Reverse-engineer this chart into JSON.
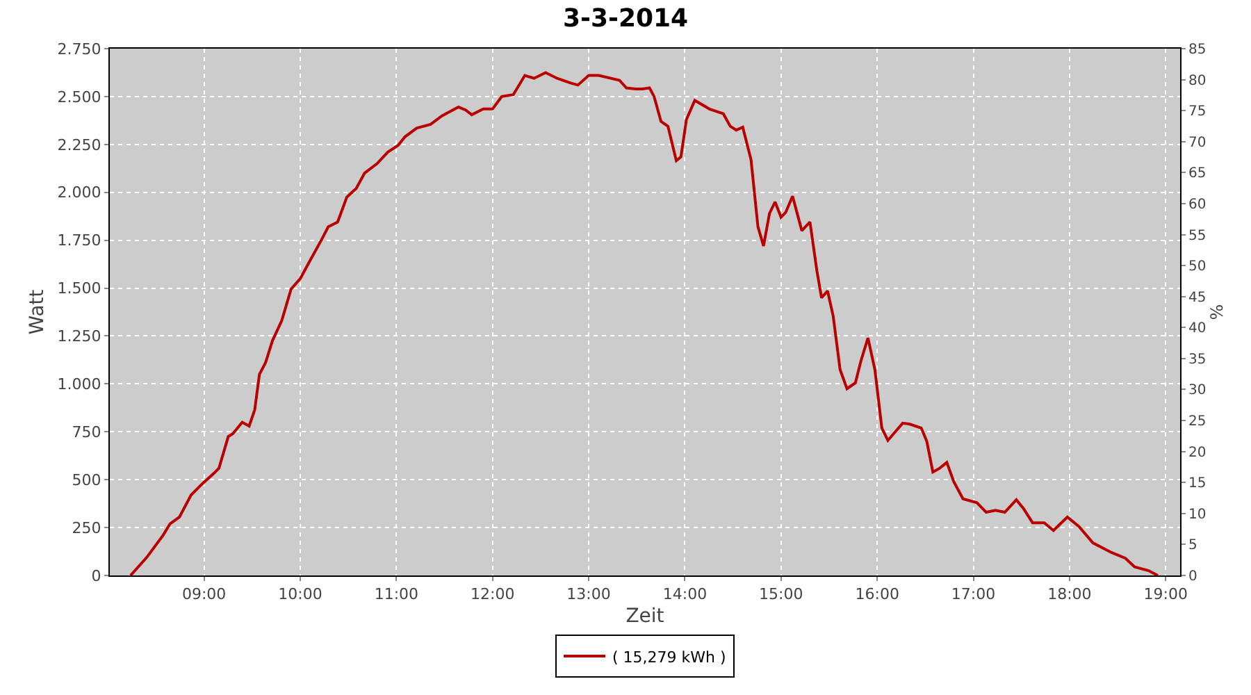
{
  "chart_data": {
    "type": "line",
    "title": "3-3-2014",
    "xlabel": "Zeit",
    "ylabel": "Watt",
    "y2label": "%",
    "x": [
      8.236,
      8.405,
      8.574,
      8.647,
      8.744,
      8.865,
      8.985,
      9.106,
      9.155,
      9.252,
      9.3,
      9.397,
      9.469,
      9.527,
      9.576,
      9.639,
      9.711,
      9.808,
      9.905,
      10.001,
      10.098,
      10.219,
      10.292,
      10.389,
      10.485,
      10.582,
      10.669,
      10.8,
      10.911,
      11.017,
      11.09,
      11.211,
      11.356,
      11.477,
      11.646,
      11.719,
      11.784,
      11.904,
      12.0,
      12.096,
      12.216,
      12.336,
      12.432,
      12.552,
      12.672,
      12.816,
      12.888,
      13.0,
      13.104,
      13.32,
      13.392,
      13.488,
      13.56,
      13.632,
      13.68,
      13.752,
      13.824,
      13.911,
      13.959,
      14.016,
      14.103,
      14.256,
      14.4,
      14.472,
      14.535,
      14.602,
      14.688,
      14.76,
      14.818,
      14.88,
      14.938,
      15.0,
      15.048,
      15.12,
      15.216,
      15.301,
      15.373,
      15.421,
      15.484,
      15.542,
      15.614,
      15.686,
      15.773,
      15.831,
      15.904,
      15.976,
      16.048,
      16.111,
      16.265,
      16.338,
      16.458,
      16.516,
      16.579,
      16.651,
      16.724,
      16.796,
      16.892,
      17.037,
      17.134,
      17.23,
      17.327,
      17.447,
      17.52,
      17.616,
      17.737,
      17.833,
      17.978,
      18.099,
      18.243,
      18.436,
      18.581,
      18.677,
      18.822,
      18.918
    ],
    "series": [
      {
        "name": "( 15,279 kWh )",
        "color": "#bb0000",
        "values": [
          0,
          95,
          210,
          270,
          305,
          420,
          480,
          535,
          560,
          725,
          740,
          800,
          780,
          865,
          1050,
          1110,
          1225,
          1330,
          1495,
          1550,
          1640,
          1750,
          1820,
          1845,
          1975,
          2020,
          2100,
          2150,
          2210,
          2245,
          2290,
          2335,
          2355,
          2400,
          2445,
          2430,
          2405,
          2435,
          2435,
          2500,
          2510,
          2610,
          2595,
          2625,
          2595,
          2570,
          2560,
          2610,
          2610,
          2585,
          2545,
          2540,
          2540,
          2545,
          2500,
          2370,
          2345,
          2165,
          2185,
          2380,
          2480,
          2435,
          2410,
          2345,
          2325,
          2340,
          2170,
          1820,
          1720,
          1890,
          1950,
          1870,
          1895,
          1980,
          1800,
          1845,
          1590,
          1450,
          1485,
          1355,
          1075,
          975,
          1005,
          1120,
          1240,
          1075,
          770,
          705,
          795,
          790,
          770,
          700,
          540,
          560,
          590,
          490,
          400,
          380,
          330,
          340,
          330,
          395,
          350,
          275,
          275,
          235,
          305,
          255,
          170,
          120,
          90,
          45,
          25,
          0
        ]
      }
    ],
    "xlim": [
      8.02,
      19.15
    ],
    "xticks": [
      {
        "value": 9,
        "label": "09:00"
      },
      {
        "value": 10,
        "label": "10:00"
      },
      {
        "value": 11,
        "label": "11:00"
      },
      {
        "value": 12,
        "label": "12:00"
      },
      {
        "value": 13,
        "label": "13:00"
      },
      {
        "value": 14,
        "label": "14:00"
      },
      {
        "value": 15,
        "label": "15:00"
      },
      {
        "value": 16,
        "label": "16:00"
      },
      {
        "value": 17,
        "label": "17:00"
      },
      {
        "value": 18,
        "label": "18:00"
      },
      {
        "value": 19,
        "label": "19:00"
      }
    ],
    "ylim": [
      0,
      2750
    ],
    "yticks": [
      {
        "value": 0,
        "label": "0"
      },
      {
        "value": 250,
        "label": "250"
      },
      {
        "value": 500,
        "label": "500"
      },
      {
        "value": 750,
        "label": "750"
      },
      {
        "value": 1000,
        "label": "1.000"
      },
      {
        "value": 1250,
        "label": "1.250"
      },
      {
        "value": 1500,
        "label": "1.500"
      },
      {
        "value": 1750,
        "label": "1.750"
      },
      {
        "value": 2000,
        "label": "2.000"
      },
      {
        "value": 2250,
        "label": "2.250"
      },
      {
        "value": 2500,
        "label": "2.500"
      },
      {
        "value": 2750,
        "label": "2.750"
      }
    ],
    "y2lim": [
      0,
      85
    ],
    "y2ticks": [
      0,
      5,
      10,
      15,
      20,
      25,
      30,
      35,
      40,
      45,
      50,
      55,
      60,
      65,
      70,
      75,
      80,
      85
    ],
    "grid": true,
    "legend": "bottom",
    "line_style": "solid"
  }
}
